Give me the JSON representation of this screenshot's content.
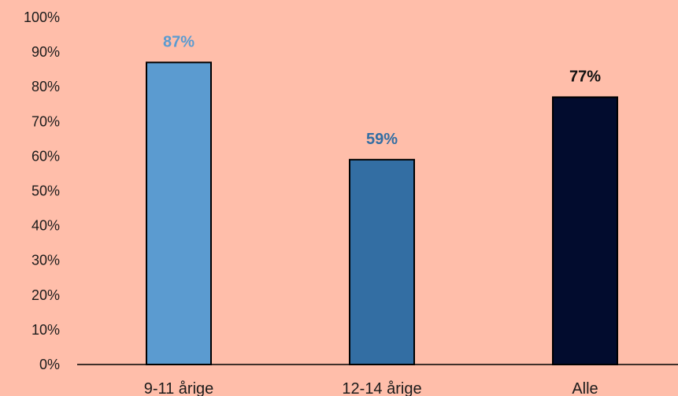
{
  "chart_data": {
    "type": "bar",
    "categories": [
      "9-11 årige",
      "12-14 årige",
      "Alle"
    ],
    "values": [
      87,
      59,
      77
    ],
    "data_labels": [
      "87%",
      "59%",
      "77%"
    ],
    "bar_colors": [
      "#5B9BD0",
      "#336EA3",
      "#020C2E"
    ],
    "label_colors": [
      "#5B9BD0",
      "#336EA3",
      "#111111"
    ],
    "ylim": [
      0,
      100
    ],
    "yticks": [
      0,
      10,
      20,
      30,
      40,
      50,
      60,
      70,
      80,
      90,
      100
    ],
    "ytick_labels": [
      "0%",
      "10%",
      "20%",
      "30%",
      "40%",
      "50%",
      "60%",
      "70%",
      "80%",
      "90%",
      "100%"
    ],
    "grid": false,
    "legend": "none",
    "background": "#FFBEAA"
  }
}
